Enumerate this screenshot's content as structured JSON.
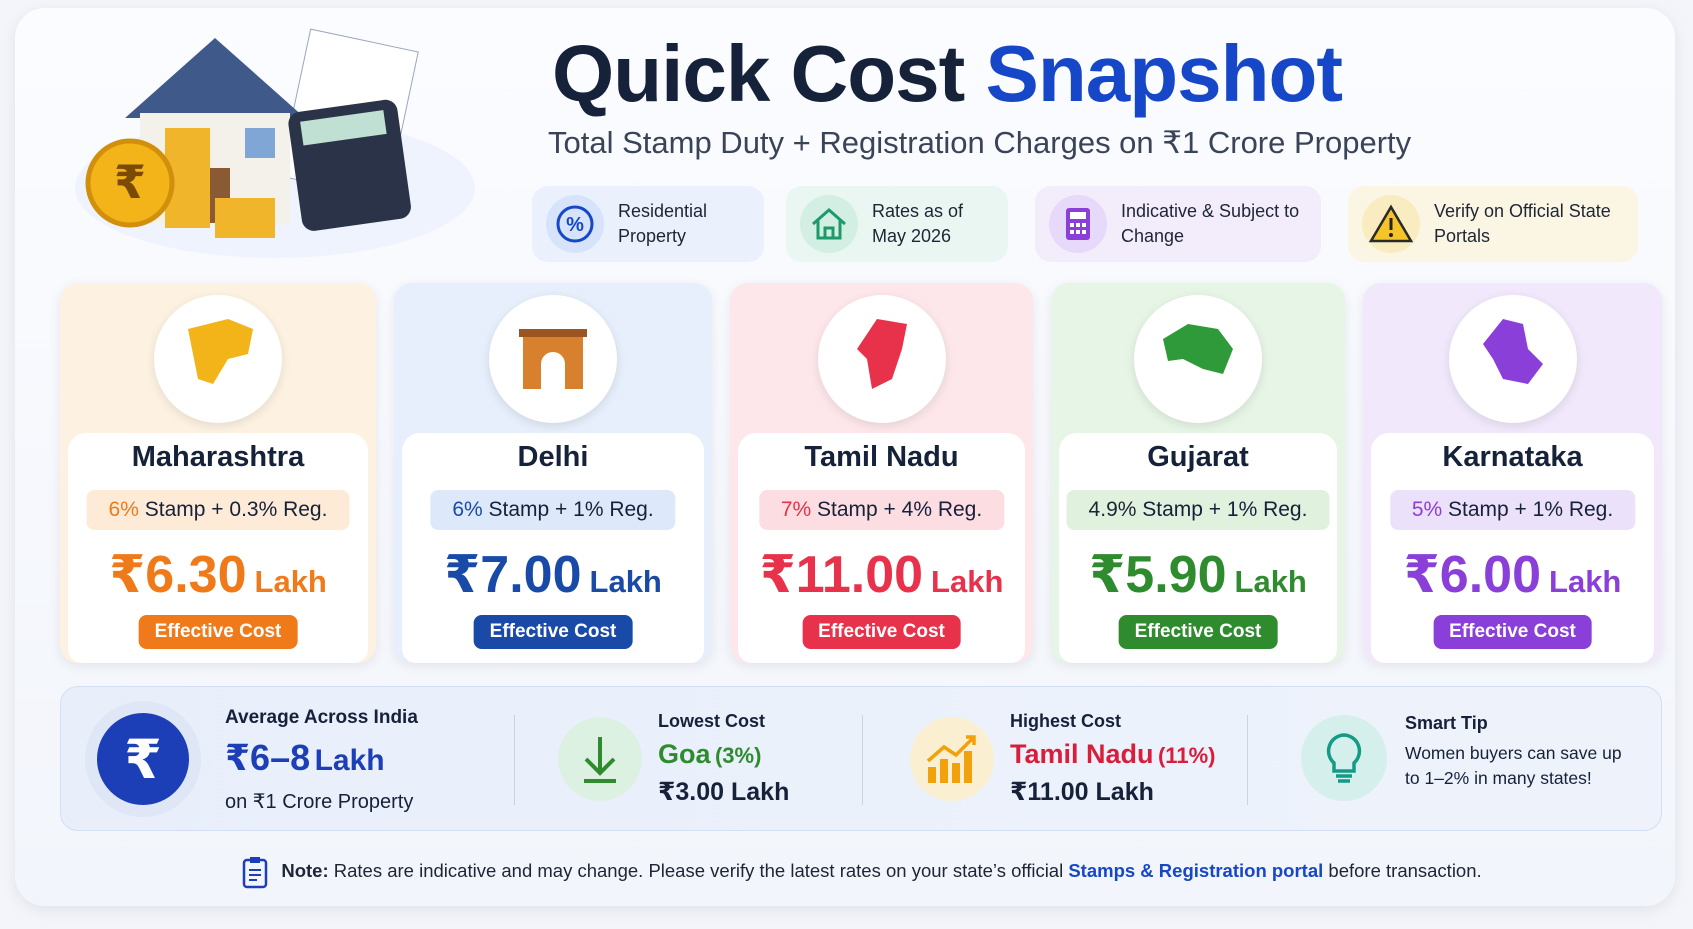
{
  "header": {
    "title_dark": "Quick Cost",
    "title_blue": "Snapshot",
    "subtitle": "Total Stamp Duty + Registration Charges on ₹1 Crore Property"
  },
  "badges": [
    {
      "text": "Residential Property"
    },
    {
      "text": "Rates as of May 2026"
    },
    {
      "text": "Indicative & Subject to Change"
    },
    {
      "text": "Verify on Official State Portals"
    }
  ],
  "cards": [
    {
      "state": "Maharashtra",
      "rate_highlight": "6%",
      "rate_rest": "Stamp + 0.3% Reg.",
      "amount": "₹6.30",
      "unit": "Lakh",
      "tag": "Effective Cost"
    },
    {
      "state": "Delhi",
      "rate_highlight": "6%",
      "rate_rest": "Stamp + 1% Reg.",
      "amount": "₹7.00",
      "unit": "Lakh",
      "tag": "Effective Cost"
    },
    {
      "state": "Tamil Nadu",
      "rate_highlight": "7%",
      "rate_rest": "Stamp + 4% Reg.",
      "amount": "₹11.00",
      "unit": "Lakh",
      "tag": "Effective Cost"
    },
    {
      "state": "Gujarat",
      "rate_highlight": "4.9%",
      "rate_rest": "Stamp + 1% Reg.",
      "amount": "₹5.90",
      "unit": "Lakh",
      "tag": "Effective Cost"
    },
    {
      "state": "Karnataka",
      "rate_highlight": "5%",
      "rate_rest": "Stamp + 1% Reg.",
      "amount": "₹6.00",
      "unit": "Lakh",
      "tag": "Effective Cost"
    }
  ],
  "summary": {
    "average": {
      "label": "Average Across India",
      "value": "₹6–8",
      "unit": "Lakh",
      "note": "on ₹1 Crore Property"
    },
    "lowest": {
      "label": "Lowest Cost",
      "state": "Goa",
      "rate": "(3%)",
      "amount": "₹3.00 Lakh"
    },
    "highest": {
      "label": "Highest Cost",
      "state": "Tamil Nadu",
      "rate": "(11%)",
      "amount": "₹11.00 Lakh"
    },
    "tip": {
      "label": "Smart Tip",
      "text": "Women buyers can save up to 1–2% in many states!"
    }
  },
  "note": {
    "lead": "Note:",
    "text": "Rates are indicative and may change. Please verify the latest rates on your state’s official",
    "link": "Stamps & Registration portal",
    "tail": "before transaction."
  }
}
